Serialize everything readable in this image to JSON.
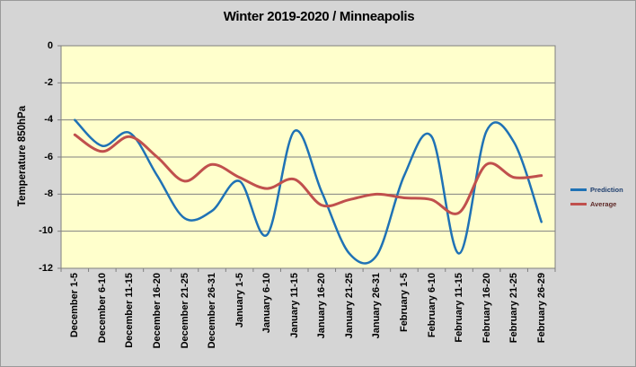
{
  "window": {
    "bg_color": "#d5d5d5",
    "plot_bg_color": "#ffffcc",
    "gridline_color": "#808080"
  },
  "legend": [
    {
      "label": "Prediction",
      "color": "#1f72b5",
      "text_color": "#1f3f6e"
    },
    {
      "label": "Average",
      "color": "#c0504d",
      "text_color": "#5f2a28"
    }
  ],
  "chart_data": {
    "type": "line",
    "title": "Winter 2019-2020 / Minneapolis",
    "ylabel": "Temperature 850hPa",
    "xlabel": "",
    "ylim": [
      0,
      -12
    ],
    "yticks": [
      0,
      -2,
      -4,
      -6,
      -8,
      -10,
      -12
    ],
    "grid": true,
    "smooth": true,
    "legend_position": "right",
    "plot_bg": "#ffffcc",
    "categories": [
      "December 1-5",
      "December 6-10",
      "December 11-15",
      "December 16-20",
      "December 21-25",
      "December 26-31",
      "January 1-5",
      "January 6-10",
      "January 11-15",
      "January 16-20",
      "January 21-25",
      "January 26-31",
      "February 1-5",
      "February 6-10",
      "February 11-15",
      "February 16-20",
      "February 21-25",
      "February 26-29"
    ],
    "series": [
      {
        "name": "Prediction",
        "color": "#1f72b5",
        "stroke_width": 2.5,
        "values": [
          -4.0,
          -5.4,
          -4.7,
          -7.0,
          -9.3,
          -8.9,
          -7.3,
          -10.2,
          -4.6,
          -7.9,
          -11.2,
          -11.3,
          -7.0,
          -4.9,
          -11.2,
          -4.6,
          -5.2,
          -9.5
        ]
      },
      {
        "name": "Average",
        "color": "#c0504d",
        "stroke_width": 3,
        "values": [
          -4.8,
          -5.7,
          -4.9,
          -6.0,
          -7.3,
          -6.4,
          -7.1,
          -7.7,
          -7.2,
          -8.6,
          -8.3,
          -8.0,
          -8.2,
          -8.3,
          -9.0,
          -6.4,
          -7.1,
          -7.0
        ]
      }
    ]
  }
}
